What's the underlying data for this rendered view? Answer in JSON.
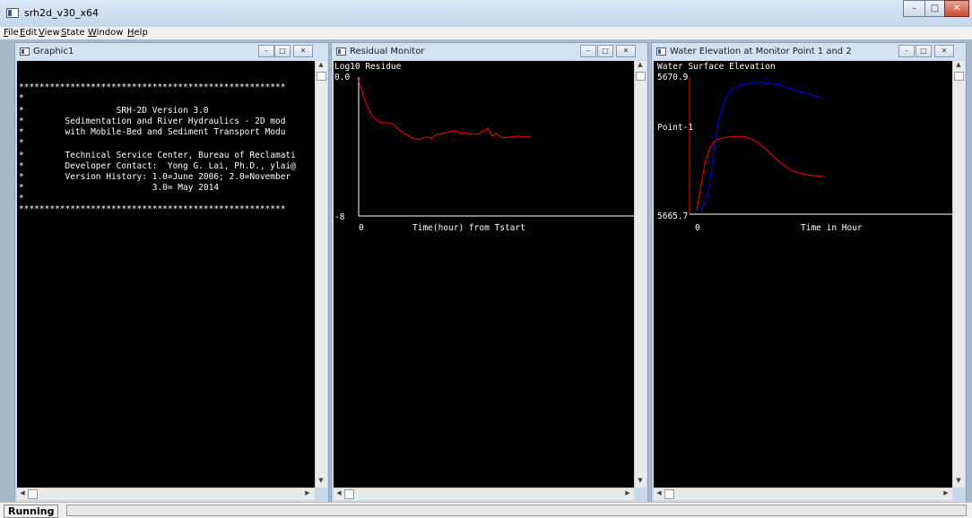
{
  "app": {
    "title": "srh2d_v30_x64"
  },
  "menu": [
    {
      "pre": "",
      "u": "F",
      "post": "ile"
    },
    {
      "pre": "",
      "u": "E",
      "post": "dit"
    },
    {
      "pre": "",
      "u": "V",
      "post": "iew"
    },
    {
      "pre": "",
      "u": "S",
      "post": "tate"
    },
    {
      "pre": "",
      "u": "W",
      "post": "indow"
    },
    {
      "pre": "",
      "u": "H",
      "post": "elp"
    }
  ],
  "windows": {
    "graphic1": {
      "title": "Graphic1",
      "lines": [
        "****************************************************",
        "*",
        "*                  SRH-2D Version 3.0",
        "*        Sedimentation and River Hydraulics - 2D mod",
        "*        with Mobile-Bed and Sediment Transport Modu",
        "*",
        "*        Technical Service Center, Bureau of Reclamati",
        "*        Developer Contact:  Yong G. Lai, Ph.D., ylai@",
        "*        Version History: 1.0=June 2006; 2.0=November",
        "*                         3.0= May 2014",
        "*",
        "****************************************************"
      ]
    },
    "residual": {
      "title": "Residual Monitor",
      "ylabel": "Log10 Residue",
      "ymax_label": "0.0",
      "ymin_label": "-8",
      "x0_label": "0",
      "xlabel": "Time(hour) from Tstart"
    },
    "elevation": {
      "title": "Water Elevation at Monitor Point 1 and 2",
      "ylabel": "Water Surface Elevation",
      "ymax_label": "5670.9",
      "ymin_label": "5665.7",
      "point_label": "Point-1",
      "x0_label": "0",
      "xlabel": "Time in Hour"
    }
  },
  "chart_data": [
    {
      "type": "line",
      "title": "Residual Monitor",
      "ylabel": "Log10 Residue",
      "xlabel": "Time(hour) from Tstart",
      "ylim": [
        -8,
        0
      ],
      "series": [
        {
          "color": "#ff0000",
          "x": [
            0,
            1,
            2,
            3,
            4,
            5,
            6,
            7,
            8,
            9,
            10,
            11,
            12,
            13,
            14,
            15,
            16,
            17,
            18,
            19,
            20,
            21,
            22,
            23,
            24,
            25,
            26,
            27,
            28,
            29,
            30,
            31,
            32,
            33,
            34,
            35,
            36,
            37,
            38,
            39,
            40
          ],
          "values": [
            -0.2,
            -1.0,
            -1.7,
            -2.2,
            -2.45,
            -2.6,
            -2.65,
            -2.62,
            -2.7,
            -2.95,
            -3.15,
            -3.3,
            -3.45,
            -3.55,
            -3.6,
            -3.5,
            -3.45,
            -3.55,
            -3.3,
            -3.3,
            -3.2,
            -3.15,
            -3.1,
            -3.15,
            -3.25,
            -3.2,
            -3.3,
            -3.3,
            -3.25,
            -3.1,
            -2.95,
            -3.4,
            -3.25,
            -3.45,
            -3.5,
            -3.45,
            -3.45,
            -3.4,
            -3.45,
            -3.45,
            -3.45
          ]
        }
      ]
    },
    {
      "type": "line",
      "title": "Water Elevation at Monitor Point 1 and 2",
      "ylabel": "Water Surface Elevation",
      "xlabel": "Time in Hour",
      "ylim": [
        5665.7,
        5670.9
      ],
      "series": [
        {
          "name": "Point-1",
          "color": "#0000ff",
          "x": [
            0,
            1,
            2,
            3,
            4,
            5,
            6,
            7,
            8,
            9,
            10,
            11,
            12,
            13,
            14,
            15,
            16,
            17,
            18,
            19,
            20,
            21,
            22,
            23,
            24,
            25,
            26,
            27,
            28,
            29
          ],
          "values": [
            5665.85,
            5665.9,
            5666.1,
            5666.9,
            5668.2,
            5669.2,
            5669.8,
            5670.2,
            5670.4,
            5670.5,
            5670.6,
            5670.62,
            5670.65,
            5670.68,
            5670.7,
            5670.7,
            5670.68,
            5670.66,
            5670.62,
            5670.6,
            5670.55,
            5670.5,
            5670.45,
            5670.4,
            5670.35,
            5670.3,
            5670.25,
            5670.2,
            5670.15,
            5670.1
          ]
        },
        {
          "color": "#ff0000",
          "x": [
            0,
            1,
            2,
            3,
            4,
            5,
            6,
            7,
            8,
            9,
            10,
            11,
            12,
            13,
            14,
            15,
            16,
            17,
            18,
            19,
            20,
            21,
            22,
            23,
            24,
            25,
            26,
            27,
            28,
            29
          ],
          "values": [
            5665.85,
            5666.8,
            5667.7,
            5668.2,
            5668.45,
            5668.55,
            5668.6,
            5668.62,
            5668.64,
            5668.65,
            5668.65,
            5668.64,
            5668.6,
            5668.52,
            5668.42,
            5668.3,
            5668.15,
            5668.0,
            5667.85,
            5667.7,
            5667.55,
            5667.45,
            5667.35,
            5667.3,
            5667.25,
            5667.2,
            5667.18,
            5667.16,
            5667.15,
            5667.15
          ]
        }
      ]
    }
  ],
  "status": {
    "text": "Running"
  },
  "colors": {
    "red": "#ff0000",
    "blue": "#0000ff",
    "axis": "#ffffff"
  }
}
